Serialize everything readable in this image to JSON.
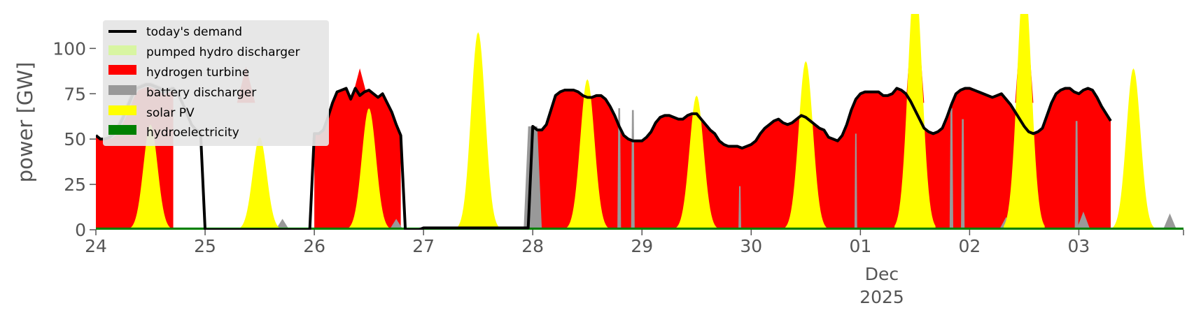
{
  "chart_data": {
    "type": "area",
    "ylabel": "power [GW]",
    "ylim": [
      0,
      119
    ],
    "yticks": [
      0,
      25,
      50,
      75,
      100
    ],
    "xlim": [
      0,
      239
    ],
    "xticks": [
      {
        "x": 0,
        "label": "24"
      },
      {
        "x": 24,
        "label": "25"
      },
      {
        "x": 48,
        "label": "26"
      },
      {
        "x": 72,
        "label": "27"
      },
      {
        "x": 96,
        "label": "28"
      },
      {
        "x": 120,
        "label": "29"
      },
      {
        "x": 144,
        "label": "30"
      },
      {
        "x": 168,
        "label": "01"
      },
      {
        "x": 192,
        "label": "02"
      },
      {
        "x": 216,
        "label": "03"
      }
    ],
    "month_label": "Dec",
    "year_label": "2025",
    "legend_position": "upper-left",
    "grid": false,
    "colors": {
      "demand": "#000000",
      "pumped_hydro": "#d8f5a2",
      "hydrogen": "#ff0000",
      "battery": "#999999",
      "solar": "#ffff00",
      "hydro": "#008000",
      "text": "#555555",
      "legend_bg": "#e5e5e5"
    },
    "series": [
      {
        "key": "hydro",
        "name": "hydroelectricity"
      },
      {
        "key": "solar",
        "name": "solar PV"
      },
      {
        "key": "battery",
        "name": "battery discharger"
      },
      {
        "key": "hydrogen",
        "name": "hydrogen turbine"
      },
      {
        "key": "pumped_hydro",
        "name": "pumped hydro discharger"
      },
      {
        "key": "demand",
        "name": "today's demand"
      }
    ],
    "demand_hourly": [
      52,
      50,
      50,
      51,
      53,
      57,
      62,
      68,
      74,
      78,
      79,
      80,
      80,
      79,
      78,
      76,
      77,
      78,
      75,
      70,
      64,
      58,
      55,
      54,
      0,
      0,
      0,
      0,
      0,
      0,
      0,
      0,
      0,
      0,
      0,
      0,
      0,
      0,
      0,
      0,
      0,
      0,
      0,
      0,
      0,
      0,
      0,
      0,
      53,
      53,
      55,
      62,
      70,
      76,
      77,
      78,
      72,
      78,
      74,
      76,
      77,
      75,
      73,
      75,
      70,
      65,
      58,
      52,
      0,
      0,
      0,
      0,
      1,
      1,
      1,
      1,
      1,
      1,
      1,
      1,
      1,
      1,
      1,
      1,
      1,
      1,
      1,
      1,
      1,
      1,
      1,
      1,
      1,
      1,
      1,
      1,
      57,
      55,
      55,
      58,
      66,
      74,
      76,
      77,
      77,
      77,
      76,
      74,
      73,
      73,
      74,
      74,
      72,
      68,
      63,
      57,
      52,
      50,
      49,
      49,
      49,
      51,
      54,
      59,
      62,
      63,
      63,
      62,
      61,
      61,
      63,
      64,
      64,
      61,
      58,
      55,
      53,
      49,
      47,
      46,
      46,
      46,
      45,
      46,
      47,
      49,
      53,
      56,
      58,
      60,
      61,
      59,
      58,
      59,
      61,
      63,
      62,
      60,
      58,
      56,
      55,
      51,
      50,
      49,
      52,
      58,
      66,
      72,
      75,
      76,
      76,
      76,
      76,
      74,
      74,
      75,
      78,
      77,
      75,
      71,
      66,
      61,
      56,
      54,
      53,
      54,
      56,
      62,
      69,
      75,
      77,
      78,
      78,
      77,
      76,
      75,
      74,
      73,
      74,
      75,
      72,
      69,
      65,
      61,
      57,
      54,
      53,
      54,
      56,
      63,
      70,
      75,
      77,
      78,
      78,
      76,
      75,
      77,
      78,
      77,
      73,
      68,
      64,
      60
    ],
    "disconnected_windows": [
      [
        17.5,
        30.5
      ],
      [
        72,
        96
      ]
    ],
    "solar_peaks": [
      {
        "x": 12,
        "peak": 58
      },
      {
        "x": 36,
        "peak": 51
      },
      {
        "x": 60,
        "peak": 67
      },
      {
        "x": 84,
        "peak": 109
      },
      {
        "x": 108,
        "peak": 83
      },
      {
        "x": 132,
        "peak": 74
      },
      {
        "x": 156,
        "peak": 93
      },
      {
        "x": 180,
        "peak": 140
      },
      {
        "x": 204,
        "peak": 140
      },
      {
        "x": 228,
        "peak": 89
      }
    ],
    "battery_spikes": [
      {
        "x": 96,
        "width": 4,
        "peak": 57
      },
      {
        "x": 115,
        "width": 0.8,
        "peak": 67
      },
      {
        "x": 118,
        "width": 0.8,
        "peak": 66
      },
      {
        "x": 141.5,
        "width": 0.6,
        "peak": 24
      },
      {
        "x": 167,
        "width": 0.6,
        "peak": 53
      },
      {
        "x": 188,
        "width": 0.8,
        "peak": 67
      },
      {
        "x": 190.5,
        "width": 0.8,
        "peak": 61
      },
      {
        "x": 215.5,
        "width": 0.8,
        "peak": 60
      }
    ],
    "hydrogen_overshoots": [
      {
        "x": 33,
        "peak": 90
      },
      {
        "x": 58,
        "peak": 89
      },
      {
        "x": 180,
        "peak": 140
      },
      {
        "x": 204,
        "peak": 140
      }
    ],
    "hydro_level": 1.2
  }
}
